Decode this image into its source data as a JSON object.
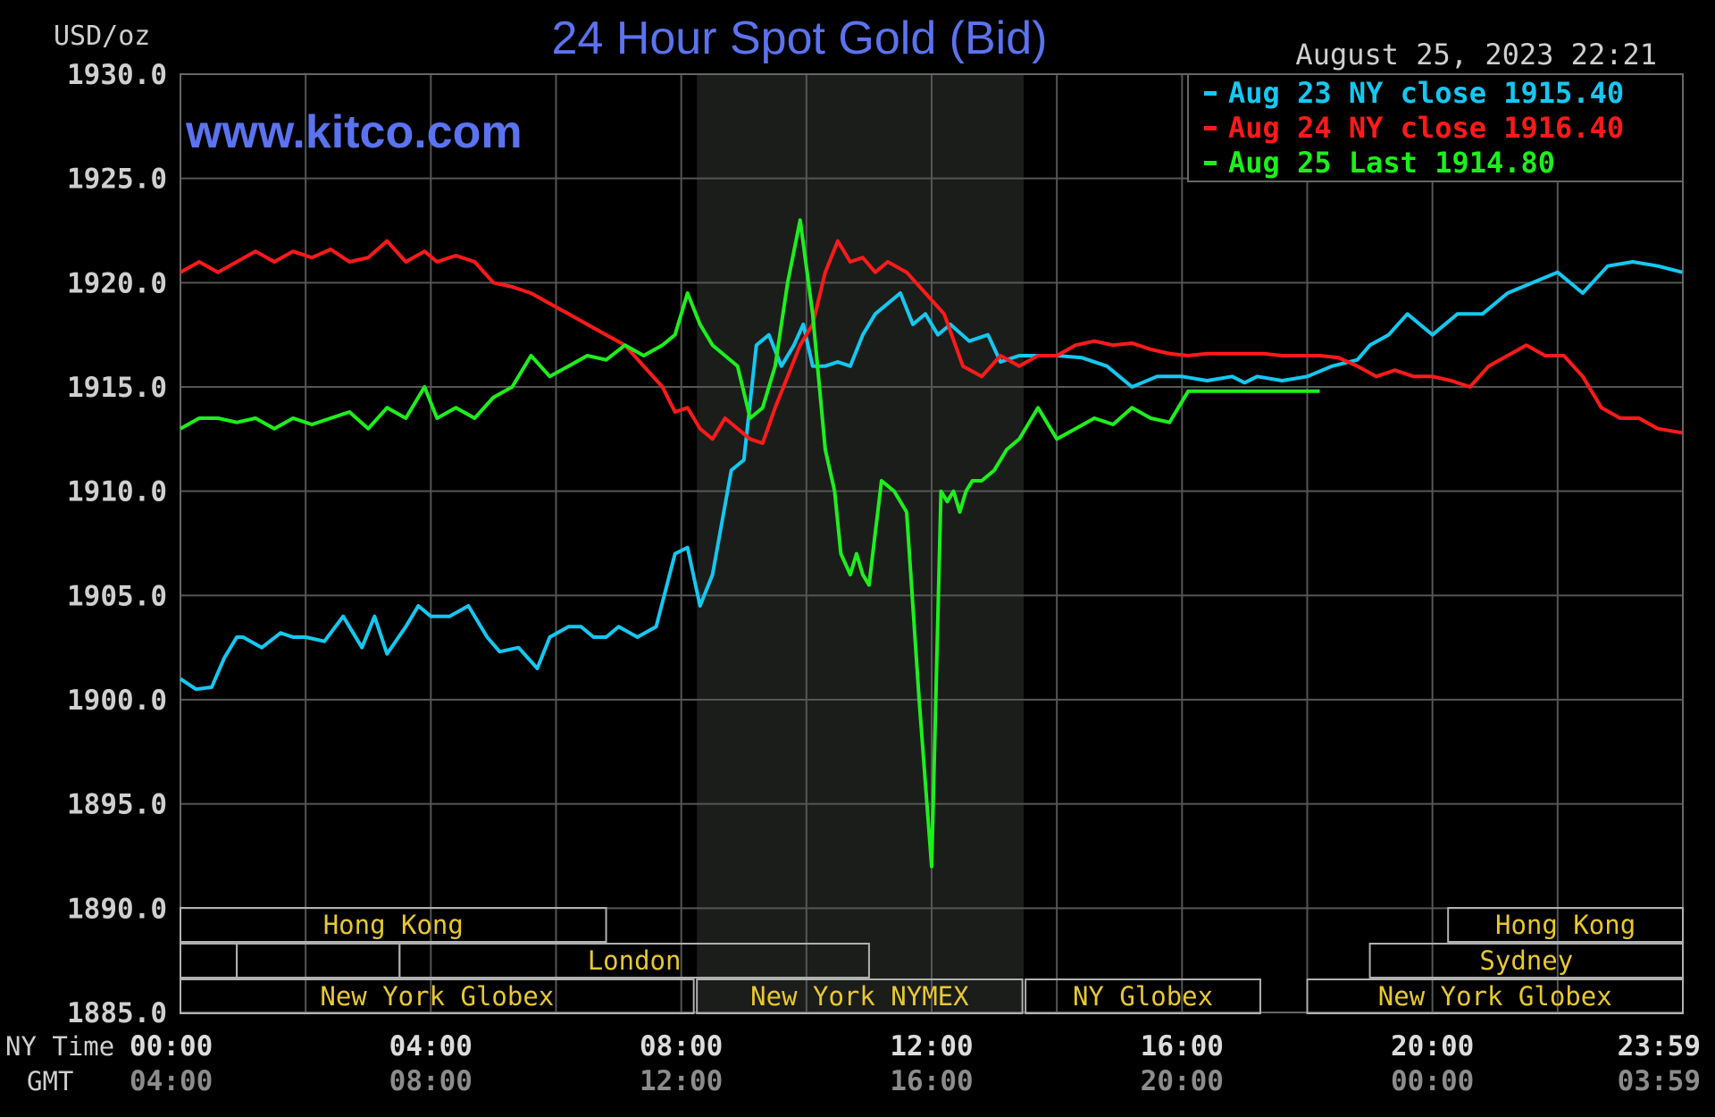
{
  "chart_data": {
    "type": "line",
    "title": "24 Hour Spot Gold (Bid)",
    "ylabel": "USD/oz",
    "watermark": "www.kitco.com",
    "timestamp": "August 25, 2023 22:21",
    "ylim": [
      1885,
      1930
    ],
    "y_ticks": [
      "1930.0",
      "1925.0",
      "1920.0",
      "1915.0",
      "1910.0",
      "1905.0",
      "1900.0",
      "1895.0",
      "1890.0",
      "1885.0"
    ],
    "x_range_hours": [
      0,
      24
    ],
    "x_tick_hours": [
      0,
      4,
      8,
      12,
      16,
      20,
      24
    ],
    "x_row_labels": {
      "ny": "NY Time",
      "gmt": "GMT"
    },
    "x_ticks_ny": [
      "00:00",
      "04:00",
      "08:00",
      "12:00",
      "16:00",
      "20:00",
      "23:59"
    ],
    "x_ticks_gmt": [
      "04:00",
      "08:00",
      "12:00",
      "16:00",
      "20:00",
      "00:00",
      "03:59"
    ],
    "grid": true,
    "legend_position": "top-right",
    "highlight_band_hours": [
      8.25,
      13.47
    ],
    "legend": [
      {
        "label": "Aug 23 NY close 1915.40",
        "color": "#14c8f0"
      },
      {
        "label": "Aug 24 NY close 1916.40",
        "color": "#ff1a1a"
      },
      {
        "label": "Aug 25 Last 1914.80",
        "color": "#1cf01c"
      }
    ],
    "series": [
      {
        "name": "Aug 23",
        "color": "#14c8f0",
        "x": [
          0,
          0.25,
          0.5,
          0.7,
          0.9,
          1.0,
          1.3,
          1.6,
          1.8,
          2.0,
          2.3,
          2.6,
          2.9,
          3.1,
          3.3,
          3.6,
          3.8,
          4.0,
          4.3,
          4.6,
          4.9,
          5.1,
          5.4,
          5.7,
          5.9,
          6.2,
          6.4,
          6.6,
          6.8,
          7.0,
          7.3,
          7.6,
          7.9,
          8.1,
          8.3,
          8.5,
          8.8,
          9.0,
          9.2,
          9.4,
          9.6,
          9.8,
          9.95,
          10.1,
          10.3,
          10.5,
          10.7,
          10.9,
          11.1,
          11.3,
          11.5,
          11.7,
          11.9,
          12.1,
          12.3,
          12.6,
          12.9,
          13.1,
          13.4,
          13.7,
          14.0,
          14.4,
          14.8,
          15.2,
          15.6,
          16.0,
          16.4,
          16.8,
          17.0,
          17.2,
          17.6,
          18.0,
          18.4,
          18.8,
          19.0,
          19.3,
          19.6,
          20.0,
          20.4,
          20.8,
          21.2,
          21.6,
          22.0,
          22.4,
          22.8,
          23.2,
          23.6,
          23.99
        ],
        "y": [
          1901.0,
          1900.5,
          1900.6,
          1902.0,
          1903.0,
          1903.0,
          1902.5,
          1903.2,
          1903.0,
          1903.0,
          1902.8,
          1904.0,
          1902.5,
          1904.0,
          1902.2,
          1903.5,
          1904.5,
          1904.0,
          1904.0,
          1904.5,
          1903.0,
          1902.3,
          1902.5,
          1901.5,
          1903.0,
          1903.5,
          1903.5,
          1903.0,
          1903.0,
          1903.5,
          1903.0,
          1903.5,
          1907.0,
          1907.3,
          1904.5,
          1906.0,
          1911.0,
          1911.5,
          1917.0,
          1917.5,
          1916.0,
          1917.0,
          1918.0,
          1916.0,
          1916.0,
          1916.2,
          1916.0,
          1917.5,
          1918.5,
          1919.0,
          1919.5,
          1918.0,
          1918.5,
          1917.5,
          1918.0,
          1917.2,
          1917.5,
          1916.2,
          1916.5,
          1916.5,
          1916.5,
          1916.4,
          1916.0,
          1915.0,
          1915.5,
          1915.5,
          1915.3,
          1915.5,
          1915.2,
          1915.5,
          1915.3,
          1915.5,
          1916.0,
          1916.3,
          1917.0,
          1917.5,
          1918.5,
          1917.5,
          1918.5,
          1918.5,
          1919.5,
          1920.0,
          1920.5,
          1919.5,
          1920.8,
          1921.0,
          1920.8,
          1920.5
        ]
      },
      {
        "name": "Aug 24",
        "color": "#ff1a1a",
        "x": [
          0,
          0.3,
          0.6,
          0.9,
          1.2,
          1.5,
          1.8,
          2.1,
          2.4,
          2.7,
          3.0,
          3.3,
          3.6,
          3.9,
          4.1,
          4.4,
          4.7,
          5.0,
          5.3,
          5.6,
          5.9,
          6.2,
          6.5,
          6.8,
          7.1,
          7.4,
          7.7,
          7.9,
          8.1,
          8.3,
          8.5,
          8.7,
          8.9,
          9.1,
          9.3,
          9.5,
          9.7,
          9.9,
          10.1,
          10.3,
          10.5,
          10.7,
          10.9,
          11.1,
          11.3,
          11.6,
          11.9,
          12.2,
          12.5,
          12.8,
          13.1,
          13.4,
          13.7,
          14.0,
          14.3,
          14.6,
          14.9,
          15.2,
          15.5,
          15.8,
          16.1,
          16.4,
          16.7,
          17.0,
          17.3,
          17.6,
          17.9,
          18.2,
          18.5,
          18.8,
          19.1,
          19.4,
          19.7,
          20.0,
          20.3,
          20.6,
          20.9,
          21.2,
          21.5,
          21.8,
          22.1,
          22.4,
          22.7,
          23.0,
          23.3,
          23.6,
          23.99
        ],
        "y": [
          1920.5,
          1921.0,
          1920.5,
          1921.0,
          1921.5,
          1921.0,
          1921.5,
          1921.2,
          1921.6,
          1921.0,
          1921.2,
          1922.0,
          1921.0,
          1921.5,
          1921.0,
          1921.3,
          1921.0,
          1920.0,
          1919.8,
          1919.5,
          1919.0,
          1918.5,
          1918.0,
          1917.5,
          1917.0,
          1916.0,
          1915.0,
          1913.8,
          1914.0,
          1913.0,
          1912.5,
          1913.5,
          1913.0,
          1912.5,
          1912.3,
          1914.0,
          1915.5,
          1917.0,
          1918.0,
          1920.5,
          1922.0,
          1921.0,
          1921.2,
          1920.5,
          1921.0,
          1920.5,
          1919.5,
          1918.5,
          1916.0,
          1915.5,
          1916.5,
          1916.0,
          1916.5,
          1916.5,
          1917.0,
          1917.2,
          1917.0,
          1917.1,
          1916.8,
          1916.6,
          1916.5,
          1916.6,
          1916.6,
          1916.6,
          1916.6,
          1916.5,
          1916.5,
          1916.5,
          1916.4,
          1916.0,
          1915.5,
          1915.8,
          1915.5,
          1915.5,
          1915.3,
          1915.0,
          1916.0,
          1916.5,
          1917.0,
          1916.5,
          1916.5,
          1915.5,
          1914.0,
          1913.5,
          1913.5,
          1913.0,
          1912.8
        ]
      },
      {
        "name": "Aug 25",
        "color": "#1cf01c",
        "x": [
          0,
          0.3,
          0.6,
          0.9,
          1.2,
          1.5,
          1.8,
          2.1,
          2.4,
          2.7,
          3.0,
          3.3,
          3.6,
          3.9,
          4.1,
          4.4,
          4.7,
          5.0,
          5.3,
          5.6,
          5.9,
          6.2,
          6.5,
          6.8,
          7.1,
          7.4,
          7.7,
          7.9,
          8.1,
          8.3,
          8.5,
          8.7,
          8.9,
          9.1,
          9.3,
          9.5,
          9.7,
          9.9,
          10.1,
          10.3,
          10.45,
          10.55,
          10.7,
          10.8,
          10.9,
          11.0,
          11.2,
          11.4,
          11.6,
          11.8,
          12.0,
          12.15,
          12.25,
          12.35,
          12.45,
          12.55,
          12.65,
          12.8,
          13.0,
          13.2,
          13.4,
          13.7,
          14.0,
          14.3,
          14.6,
          14.9,
          15.2,
          15.5,
          15.8,
          16.1,
          16.4,
          16.7,
          17.0,
          17.3,
          17.6,
          17.9,
          18.2
        ],
        "y": [
          1913.0,
          1913.5,
          1913.5,
          1913.3,
          1913.5,
          1913.0,
          1913.5,
          1913.2,
          1913.5,
          1913.8,
          1913.0,
          1914.0,
          1913.5,
          1915.0,
          1913.5,
          1914.0,
          1913.5,
          1914.5,
          1915.0,
          1916.5,
          1915.5,
          1916.0,
          1916.5,
          1916.3,
          1917.0,
          1916.5,
          1917.0,
          1917.5,
          1919.5,
          1918.0,
          1917.0,
          1916.5,
          1916.0,
          1913.5,
          1914.0,
          1916.0,
          1920.0,
          1923.0,
          1918.5,
          1912.0,
          1910.0,
          1907.0,
          1906.0,
          1907.0,
          1906.0,
          1905.5,
          1910.5,
          1910.0,
          1909.0,
          1900.0,
          1892.0,
          1910.0,
          1909.5,
          1910.0,
          1909.0,
          1910.0,
          1910.5,
          1910.5,
          1911.0,
          1912.0,
          1912.5,
          1914.0,
          1912.5,
          1913.0,
          1913.5,
          1913.2,
          1914.0,
          1913.5,
          1913.3,
          1914.8,
          1914.8,
          1914.8,
          1914.8,
          1914.8,
          1914.8,
          1914.8,
          1914.8
        ]
      }
    ],
    "sessions": [
      {
        "label": "Hong Kong",
        "start": 0,
        "end": 6.8,
        "row": 0
      },
      {
        "label": "Hong Kong",
        "start": 20.25,
        "end": 24,
        "row": 0
      },
      {
        "label": "",
        "start": 0,
        "end": 0.9,
        "row": 1
      },
      {
        "label": "",
        "start": 0.9,
        "end": 3.5,
        "row": 1
      },
      {
        "label": "London",
        "start": 3.5,
        "end": 11.0,
        "row": 1
      },
      {
        "label": "Sydney",
        "start": 19.0,
        "end": 24,
        "row": 1
      },
      {
        "label": "New York Globex",
        "start": 0,
        "end": 8.2,
        "row": 2
      },
      {
        "label": "New York NYMEX",
        "start": 8.25,
        "end": 13.45,
        "row": 2
      },
      {
        "label": "NY Globex",
        "start": 13.5,
        "end": 17.25,
        "row": 2
      },
      {
        "label": "New York Globex",
        "start": 18.0,
        "end": 24,
        "row": 2
      }
    ]
  }
}
